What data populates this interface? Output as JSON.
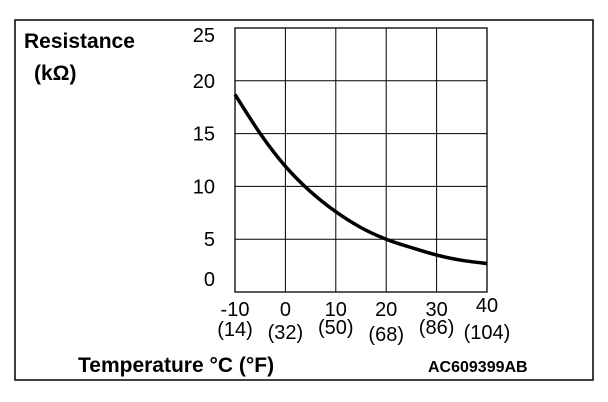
{
  "chart_data": {
    "type": "line",
    "ylabel": "Resistance",
    "ylabel_unit": "(kΩ)",
    "xlabel": "Temperature °C (°F)",
    "figure_code": "AC609399AB",
    "xlim": [
      -10,
      40
    ],
    "ylim": [
      0,
      25
    ],
    "x_ticks": [
      -10,
      0,
      10,
      20,
      30,
      40
    ],
    "x_tick_labels": [
      "-10",
      "0",
      "10",
      "20",
      "30",
      "40"
    ],
    "x_tick_sublabels": [
      "(14)",
      "(32)",
      "(50)",
      "(68)",
      "(86)",
      "(104)"
    ],
    "y_ticks": [
      0,
      5,
      10,
      15,
      20,
      25
    ],
    "y_tick_labels": [
      "0",
      "5",
      "10",
      "15",
      "20",
      "25"
    ],
    "grid": true,
    "series": [
      {
        "x": [
          -10,
          -5,
          0,
          5,
          10,
          15,
          20,
          25,
          30,
          35,
          40
        ],
        "values": [
          18.7,
          15.0,
          11.9,
          9.5,
          7.6,
          6.1,
          5.0,
          4.2,
          3.5,
          3.0,
          2.7
        ]
      }
    ]
  }
}
